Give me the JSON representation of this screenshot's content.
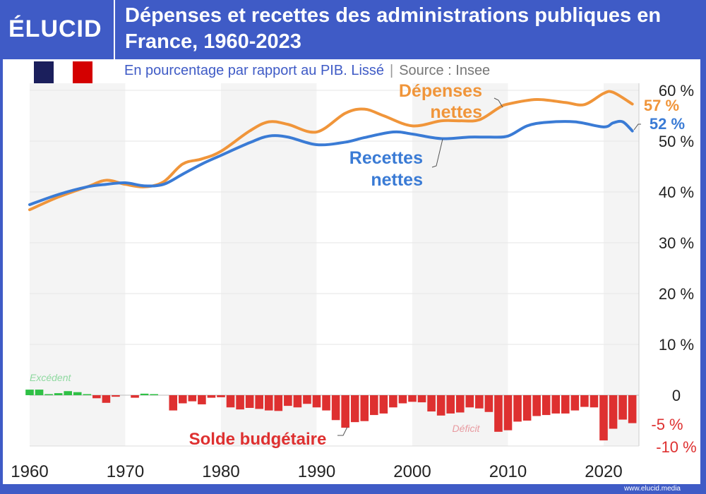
{
  "header": {
    "logo": "ÉLUCID",
    "title": "Dépenses et recettes des administrations publiques en France, 1960-2023"
  },
  "subtitle": {
    "text": "En pourcentage par rapport au PIB. Lissé",
    "separator": "|",
    "source": "Source : Insee"
  },
  "footer": {
    "url": "www.elucid.media"
  },
  "colors": {
    "brand": "#3f5bc6",
    "depenses": "#f0953a",
    "recettes": "#3a7bd5",
    "deficit": "#de3030",
    "excedent": "#2fc045"
  },
  "chart_data": {
    "type": "line",
    "title": "Dépenses et recettes des administrations publiques en France, 1960-2023",
    "ylabel": "% du PIB",
    "ylim": [
      -10,
      60
    ],
    "xlim": [
      1960,
      2023
    ],
    "x_ticks": [
      "1960",
      "1970",
      "1980",
      "1990",
      "2000",
      "2010",
      "2020"
    ],
    "y_ticks": [
      "60 %",
      "50 %",
      "40 %",
      "30 %",
      "20 %",
      "10 %",
      "0"
    ],
    "y_ticks_solde": [
      "-5 %",
      "-10 %"
    ],
    "series": [
      {
        "name": "Dépenses nettes",
        "label": [
          "Dépenses",
          "nettes"
        ],
        "end_label": "57 %",
        "x": [
          1960,
          1963,
          1966,
          1968,
          1970,
          1972,
          1974,
          1976,
          1978,
          1980,
          1983,
          1985,
          1987,
          1990,
          1993,
          1995,
          1997,
          2000,
          2003,
          2005,
          2007,
          2009,
          2010,
          2013,
          2016,
          2018,
          2020,
          2021,
          2023
        ],
        "y": [
          36.5,
          39,
          41,
          42.3,
          41.5,
          41,
          42,
          45.5,
          46.5,
          48,
          52,
          53.8,
          53.3,
          51.8,
          55.5,
          56.3,
          55,
          53,
          54,
          54,
          54.2,
          56.5,
          57.3,
          58.2,
          57.6,
          57.2,
          59.4,
          59.6,
          57.3
        ]
      },
      {
        "name": "Recettes nettes",
        "label": [
          "Recettes",
          "nettes"
        ],
        "end_label": "52 %",
        "x": [
          1960,
          1963,
          1966,
          1968,
          1970,
          1972,
          1974,
          1976,
          1978,
          1980,
          1983,
          1985,
          1987,
          1990,
          1993,
          1995,
          1998,
          2000,
          2003,
          2006,
          2008,
          2010,
          2012,
          2014,
          2017,
          2020,
          2021,
          2022,
          2023
        ],
        "y": [
          37.5,
          39.5,
          41,
          41.5,
          41.8,
          41.2,
          41.5,
          43.5,
          45.5,
          47.2,
          49.7,
          51,
          50.8,
          49.3,
          49.8,
          50.7,
          51.8,
          51.4,
          50.5,
          50.8,
          50.8,
          51,
          53,
          53.7,
          53.8,
          52.8,
          53.6,
          53.8,
          52
        ]
      }
    ],
    "bars": {
      "name": "Solde budgétaire",
      "positive_label": "Excédent",
      "negative_label": "Déficit",
      "years": [
        1960,
        1961,
        1962,
        1963,
        1964,
        1965,
        1966,
        1967,
        1968,
        1969,
        1970,
        1971,
        1972,
        1973,
        1974,
        1975,
        1976,
        1977,
        1978,
        1979,
        1980,
        1981,
        1982,
        1983,
        1984,
        1985,
        1986,
        1987,
        1988,
        1989,
        1990,
        1991,
        1992,
        1993,
        1994,
        1995,
        1996,
        1997,
        1998,
        1999,
        2000,
        2001,
        2002,
        2003,
        2004,
        2005,
        2006,
        2007,
        2008,
        2009,
        2010,
        2011,
        2012,
        2013,
        2014,
        2015,
        2016,
        2017,
        2018,
        2019,
        2020,
        2021,
        2022,
        2023
      ],
      "values": [
        1.1,
        1.1,
        0.1,
        0.4,
        0.8,
        0.6,
        0.2,
        -0.6,
        -1.5,
        -0.3,
        0,
        -0.5,
        0.3,
        0.1,
        0,
        -3.0,
        -1.6,
        -1.2,
        -1.8,
        -0.5,
        -0.4,
        -2.4,
        -2.8,
        -2.5,
        -2.7,
        -3.0,
        -3.1,
        -2.1,
        -2.4,
        -1.7,
        -2.4,
        -3.0,
        -4.9,
        -6.4,
        -5.3,
        -5.1,
        -3.9,
        -3.6,
        -2.4,
        -1.6,
        -1.3,
        -1.4,
        -3.2,
        -4.0,
        -3.6,
        -3.4,
        -2.4,
        -2.6,
        -3.3,
        -7.2,
        -6.9,
        -5.2,
        -5.0,
        -4.1,
        -3.9,
        -3.6,
        -3.6,
        -3.0,
        -2.3,
        -2.4,
        -8.9,
        -6.6,
        -4.8,
        -5.5
      ]
    }
  }
}
